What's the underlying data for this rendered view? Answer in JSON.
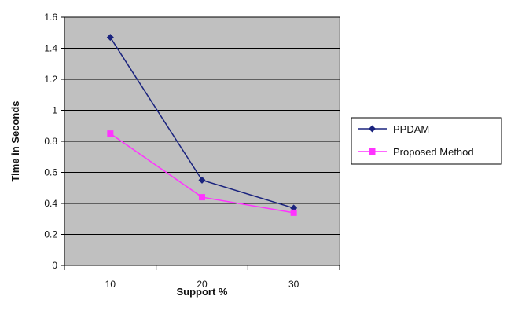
{
  "chart_data": {
    "type": "line",
    "categories": [
      "10",
      "20",
      "30"
    ],
    "x": [
      10,
      20,
      30
    ],
    "series": [
      {
        "name": "PPDAM",
        "values": [
          1.47,
          0.55,
          0.37
        ],
        "color": "#1a237e",
        "marker": "diamond"
      },
      {
        "name": "Proposed Method",
        "values": [
          0.85,
          0.44,
          0.34
        ],
        "color": "#ff33ff",
        "marker": "square"
      }
    ],
    "title": "",
    "xlabel": "Support %",
    "ylabel": "Time in Seconds",
    "ylim": [
      0,
      1.6
    ],
    "yticks": [
      0,
      0.2,
      0.4,
      0.6,
      0.8,
      1,
      1.2,
      1.4,
      1.6
    ],
    "ytick_labels": [
      "0",
      "0.2",
      "0.4",
      "0.6",
      "0.8",
      "1",
      "1.2",
      "1.4",
      "1.6"
    ],
    "grid": true,
    "plot_background": "#c0c0c0",
    "legend_position": "right"
  }
}
